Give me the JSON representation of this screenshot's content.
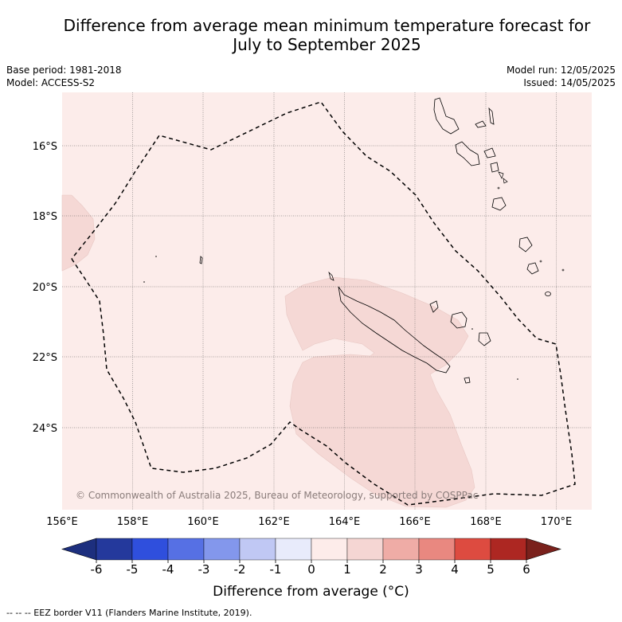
{
  "title_line1": "Difference from average mean minimum temperature forecast for",
  "title_line2": "July to September 2025",
  "base_period": "Base period: 1981-2018",
  "model": "Model: ACCESS-S2",
  "model_run": "Model run: 12/05/2025",
  "issued": "Issued: 14/05/2025",
  "copyright": "© Commonwealth of Australia 2025, Bureau of Meteorology, supported by COSPPac",
  "footnote": "--  --  -- EEZ border V11 (Flanders Marine Institute, 2019).",
  "longitude_labels": [
    "156°E",
    "158°E",
    "160°E",
    "162°E",
    "164°E",
    "166°E",
    "168°E",
    "170°E"
  ],
  "latitude_labels": [
    "16°S",
    "18°S",
    "20°S",
    "22°S",
    "24°S"
  ],
  "colorbar": {
    "label": "Difference from average (°C)",
    "ticks": [
      "-6",
      "-5",
      "-4",
      "-3",
      "-2",
      "-1",
      "0",
      "1",
      "2",
      "3",
      "4",
      "5",
      "6"
    ],
    "colors": [
      "#24399c",
      "#2f4fdd",
      "#5670e4",
      "#8397ec",
      "#c0c8f4",
      "#e8ebfb",
      "#fdecea",
      "#f5d6d3",
      "#efaca6",
      "#e98880",
      "#dd4b40",
      "#ad2722"
    ],
    "extend_low_color": "#1d2f7e",
    "extend_high_color": "#7a211c"
  },
  "map_colors": {
    "background_anomaly_0_to_1": "#fcecea",
    "anomaly_1_to_2": "#f5d8d5",
    "ocean_border": "#000000"
  }
}
